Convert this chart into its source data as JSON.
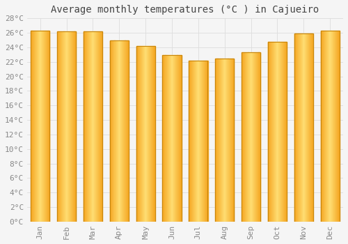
{
  "title": "Average monthly temperatures (°C ) in Cajueiro",
  "months": [
    "Jan",
    "Feb",
    "Mar",
    "Apr",
    "May",
    "Jun",
    "Jul",
    "Aug",
    "Sep",
    "Oct",
    "Nov",
    "Dec"
  ],
  "values": [
    26.3,
    26.2,
    26.2,
    25.0,
    24.2,
    22.9,
    22.2,
    22.5,
    23.3,
    24.8,
    25.9,
    26.3
  ],
  "bar_color_outer": "#F5A623",
  "bar_color_inner": "#FFD966",
  "bar_edge_color": "#C8860A",
  "ylim": [
    0,
    28
  ],
  "ytick_step": 2,
  "background_color": "#f5f5f5",
  "plot_bg_color": "#f5f5f5",
  "grid_color": "#dddddd",
  "title_fontsize": 10,
  "tick_fontsize": 8,
  "tick_color": "#888888"
}
